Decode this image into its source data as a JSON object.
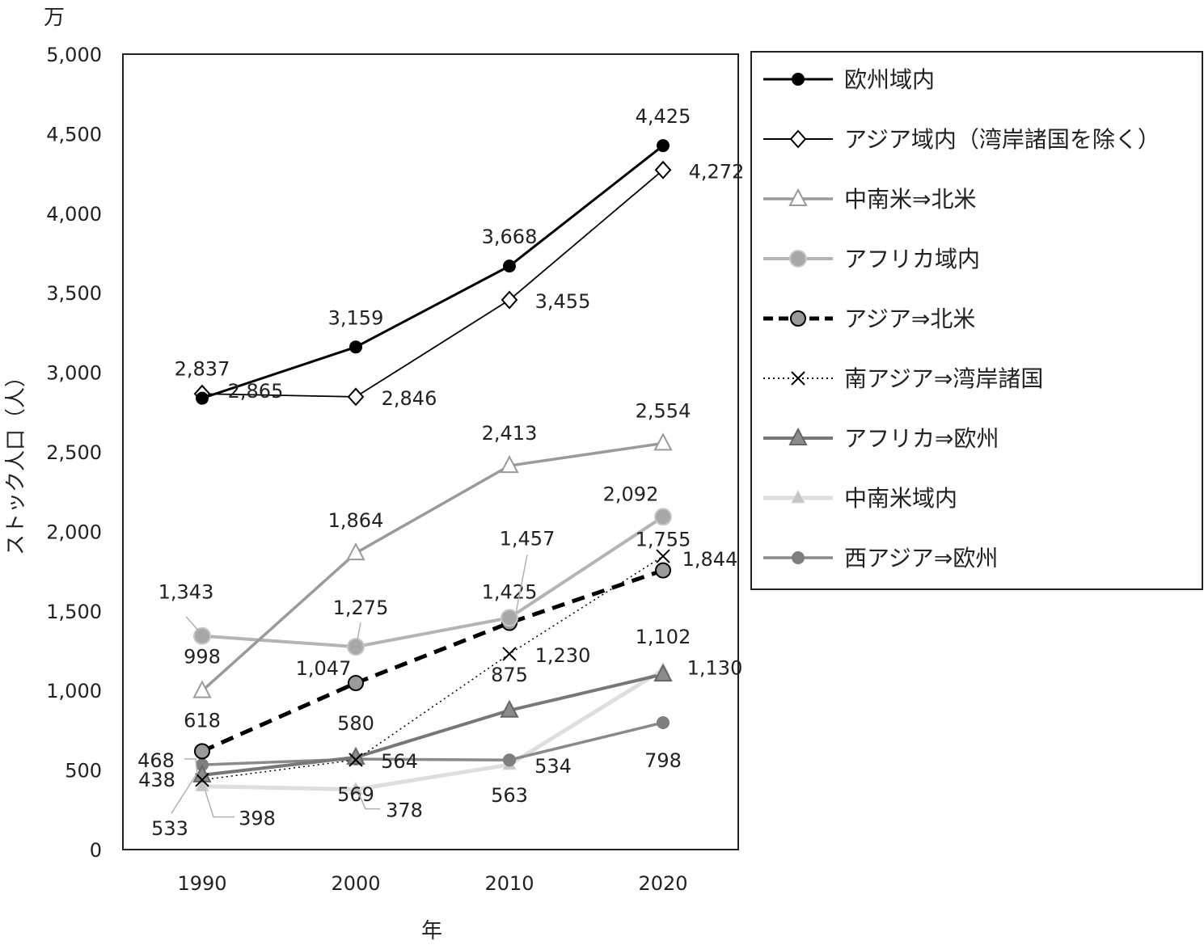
{
  "chart_data": {
    "type": "line",
    "unit_label": "万",
    "ylabel": "ストック人口（人）",
    "xlabel": "年",
    "categories": [
      "1990",
      "2000",
      "2010",
      "2020"
    ],
    "ylim": [
      0,
      5000
    ],
    "y_ticks": [
      "0",
      "500",
      "1,000",
      "1,500",
      "2,000",
      "2,500",
      "3,000",
      "3,500",
      "4,000",
      "4,500",
      "5,000"
    ],
    "legend_position": "right",
    "series": [
      {
        "name": "欧州域内",
        "values": [
          2837,
          3159,
          3668,
          4425
        ],
        "labels": [
          "2,837",
          "3,159",
          "3,668",
          "4,425"
        ],
        "color": "#000000",
        "marker": "circle"
      },
      {
        "name": "アジア域内（湾岸諸国を除く）",
        "values": [
          2865,
          2846,
          3455,
          4272
        ],
        "labels": [
          "2,865",
          "2,846",
          "3,455",
          "4,272"
        ],
        "color": "#000000",
        "marker": "diamond"
      },
      {
        "name": "中南米⇒北米",
        "values": [
          998,
          1864,
          2413,
          2554
        ],
        "labels": [
          "998",
          "1,864",
          "2,413",
          "2,554"
        ],
        "color": "#9a9a9a",
        "marker": "triangle-open"
      },
      {
        "name": "アフリカ域内",
        "values": [
          1343,
          1275,
          1457,
          2092
        ],
        "labels": [
          "1,343",
          "1,275",
          "1,457",
          "2,092"
        ],
        "color": "#b4b4b4",
        "marker": "circle"
      },
      {
        "name": "アジア⇒北米",
        "values": [
          618,
          1047,
          1425,
          1755
        ],
        "labels": [
          "618",
          "1,047",
          "1,425",
          "1,755"
        ],
        "color": "#000000",
        "marker": "circle-grey"
      },
      {
        "name": "南アジア⇒湾岸諸国",
        "values": [
          438,
          564,
          1230,
          1844
        ],
        "labels": [
          "438",
          "564",
          "1,230",
          "1,844"
        ],
        "color": "#000000",
        "marker": "x"
      },
      {
        "name": "アフリカ⇒欧州",
        "values": [
          468,
          580,
          875,
          1102
        ],
        "labels": [
          "468",
          "580",
          "875",
          "1,102"
        ],
        "color": "#777777",
        "marker": "triangle"
      },
      {
        "name": "中南米域内",
        "values": [
          398,
          378,
          534,
          1130
        ],
        "labels": [
          "398",
          "378",
          "534",
          "1,130"
        ],
        "color": "#dedede",
        "marker": "triangle-small"
      },
      {
        "name": "西アジア⇒欧州",
        "values": [
          533,
          569,
          563,
          798
        ],
        "labels": [
          "533",
          "569",
          "563",
          "798"
        ],
        "color": "#8a8a8a",
        "marker": "circle"
      }
    ]
  }
}
